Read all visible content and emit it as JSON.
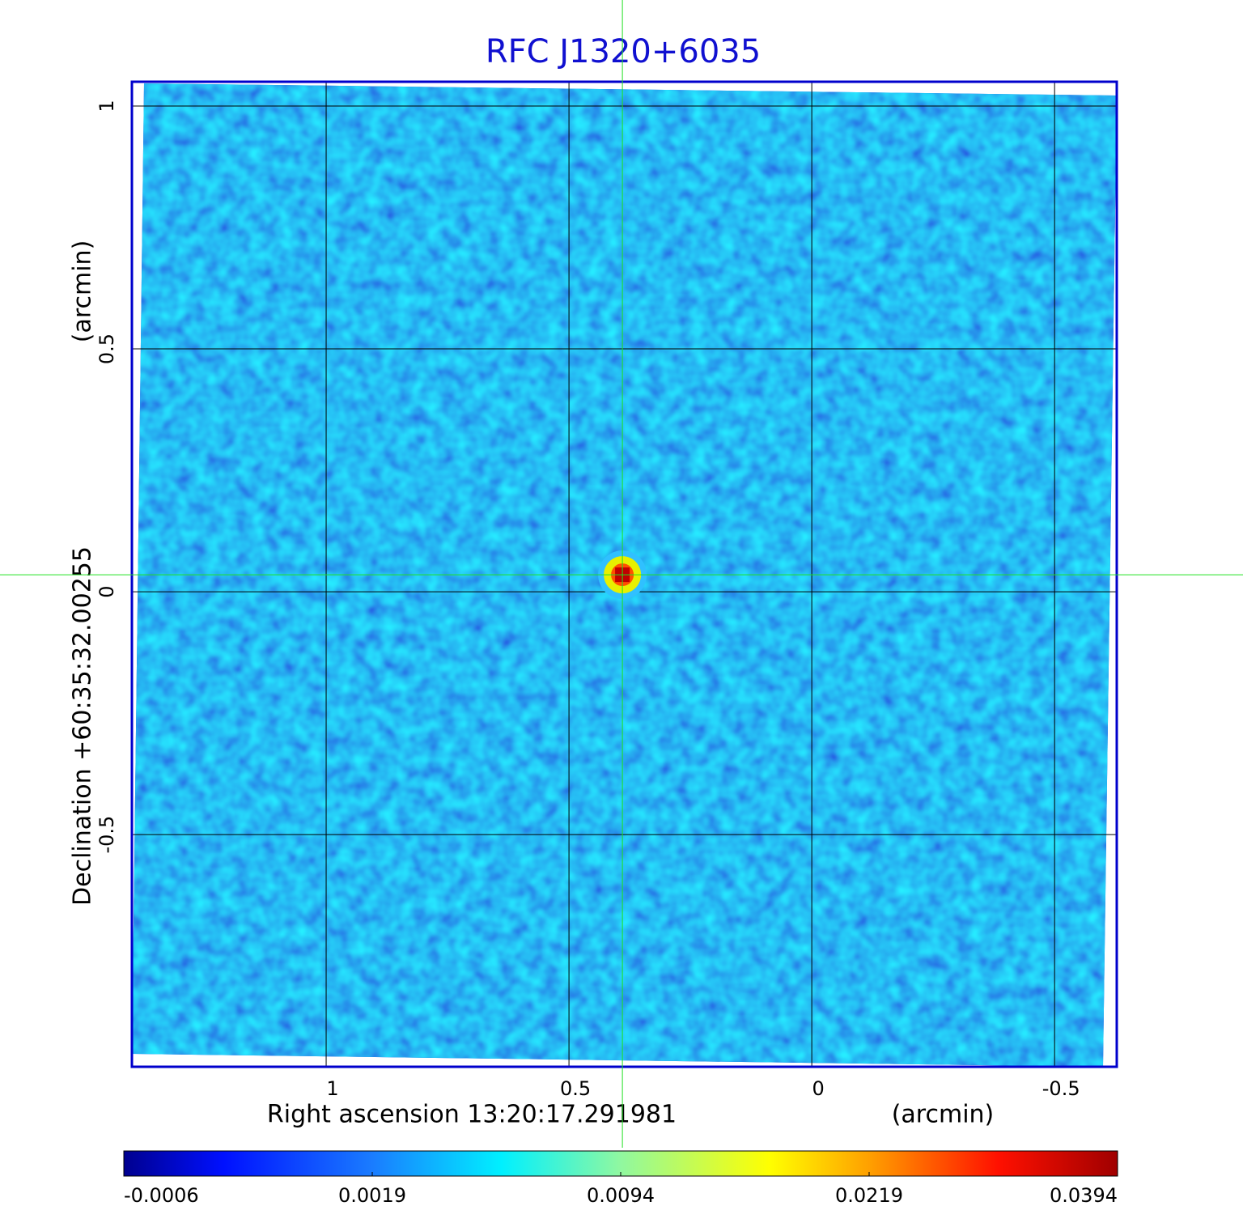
{
  "chart_data": {
    "type": "image",
    "title": "RFC J1320+6035",
    "xlabel": "Right ascension  13:20:17.291981",
    "xunit": "(arcmin)",
    "ylabel": "Declination  +60:35:32.00255",
    "yunit": "(arcmin)",
    "xlim": [
      1.4,
      -0.628
    ],
    "ylim": [
      -0.978,
      1.05
    ],
    "xticks": [
      1.0,
      0.5,
      0.0,
      -0.5
    ],
    "yticks": [
      1.0,
      0.5,
      0.0,
      -0.5
    ],
    "grid": true,
    "marker": {
      "x": 0.39,
      "y": 0.035
    },
    "colorbar": {
      "scale": "sqrt",
      "lim": [
        -0.0006,
        0.0394
      ],
      "ticks": [
        -0.0006,
        0.0019,
        0.0094,
        0.0219,
        0.0394
      ]
    }
  }
}
